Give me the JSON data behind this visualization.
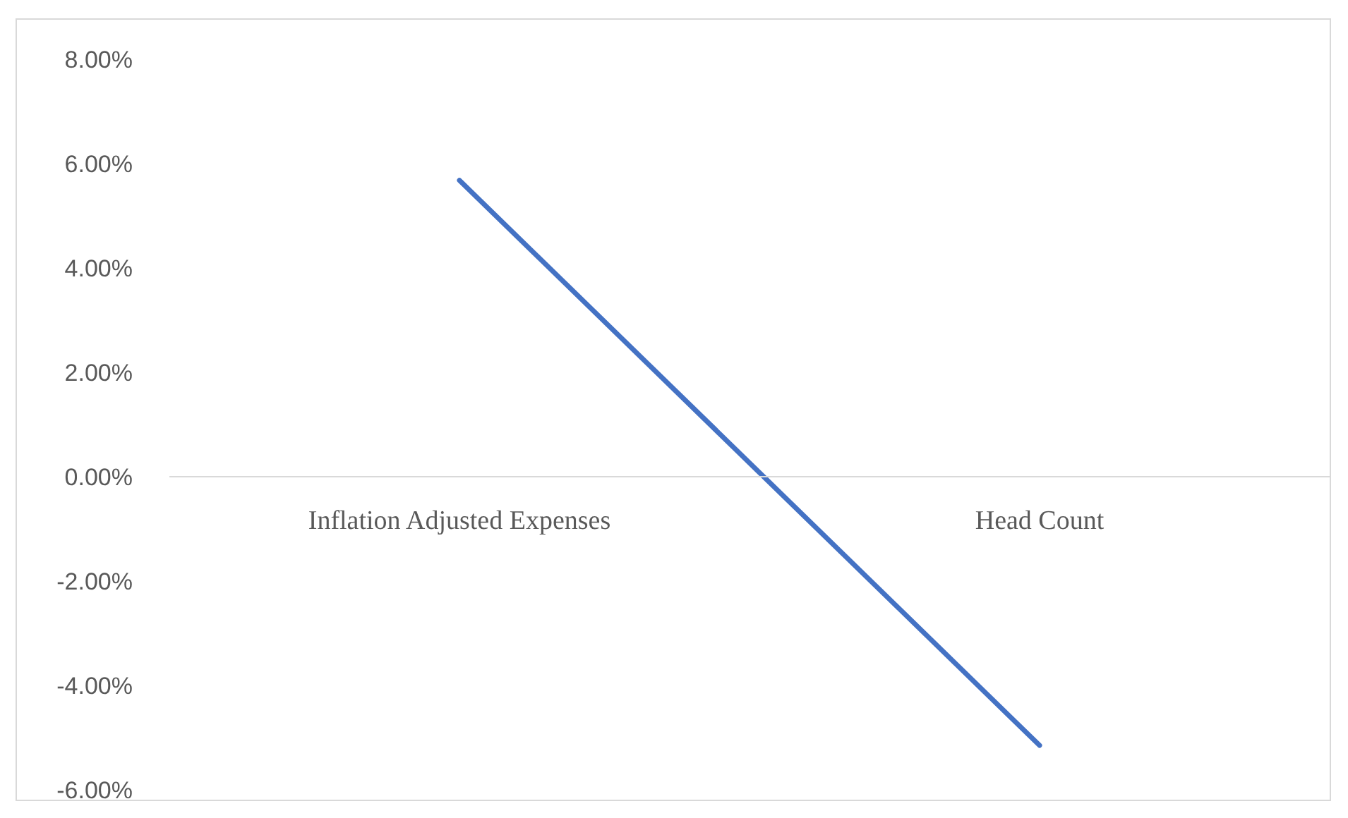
{
  "chart_data": {
    "type": "line",
    "categories": [
      "Inflation Adjusted Expenses",
      "Head Count"
    ],
    "series": [
      {
        "color": "#4472c4",
        "values": [
          5.68,
          -5.15
        ]
      }
    ],
    "ylim": [
      -6,
      8
    ],
    "yticks": [
      {
        "value": -6,
        "label": "-6.00%"
      },
      {
        "value": -4,
        "label": "-4.00%"
      },
      {
        "value": -2,
        "label": "-2.00%"
      },
      {
        "value": 0,
        "label": "0.00%"
      },
      {
        "value": 2,
        "label": "2.00%"
      },
      {
        "value": 4,
        "label": "4.00%"
      },
      {
        "value": 6,
        "label": "6.00%"
      },
      {
        "value": 8,
        "label": "8.00%"
      }
    ],
    "grid": false,
    "legend": false,
    "marker": "none",
    "line_style": "solid"
  }
}
